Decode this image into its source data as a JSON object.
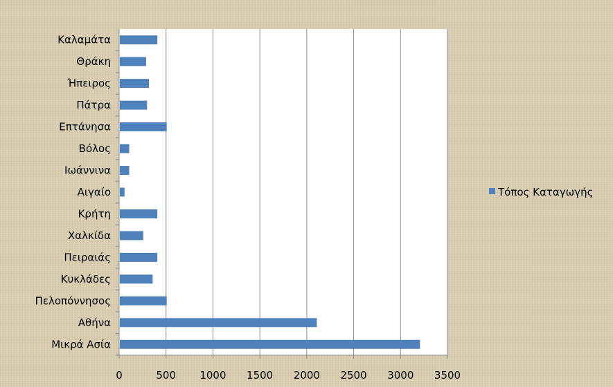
{
  "chart_data": {
    "type": "bar",
    "orientation": "horizontal",
    "categories": [
      "Μικρά Ασία",
      "Αθήνα",
      "Πελοπόννησος",
      "Κυκλάδες",
      "Πειραιάς",
      "Χαλκίδα",
      "Κρήτη",
      "Αιγαίο",
      "Ιωάννινα",
      "Βόλος",
      "Επτάνησα",
      "Πάτρα",
      "Ήπειρος",
      "Θράκη",
      "Καλαμάτα"
    ],
    "series": [
      {
        "name": "Τόπος Καταγωγής",
        "values": [
          3200,
          2100,
          500,
          350,
          400,
          250,
          400,
          50,
          100,
          100,
          500,
          290,
          310,
          280,
          400
        ],
        "color": "#4f81bd"
      }
    ],
    "xlim": [
      0,
      3500
    ],
    "xticks": [
      "0",
      "500",
      "1000",
      "1500",
      "2000",
      "2500",
      "3000",
      "3500"
    ],
    "grid": true,
    "legend": "right",
    "title": "",
    "xlabel": "",
    "ylabel": ""
  }
}
